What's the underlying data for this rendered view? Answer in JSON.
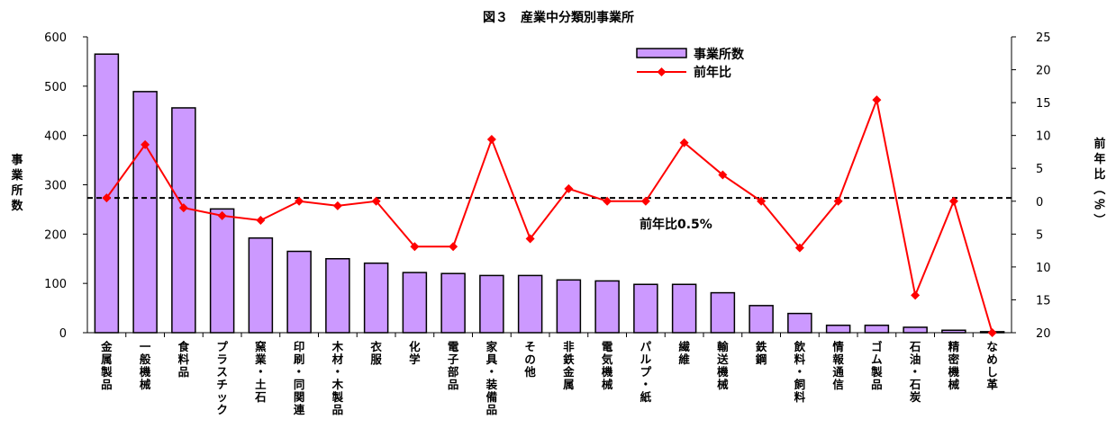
{
  "chart_data": {
    "type": "bar+line",
    "title": "図３　産業中分類別事業所",
    "categories": [
      "金属製品",
      "一般機械",
      "食料品",
      "プラスチック",
      "窯業・土石",
      "印刷・同関連",
      "木材・木製品",
      "衣服",
      "化学",
      "電子部品",
      "家具・装備品",
      "その他",
      "非鉄金属",
      "電気機械",
      "パルプ・紙",
      "繊維",
      "輸送機械",
      "鉄鋼",
      "飲料・飼料",
      "情報通信",
      "ゴム製品",
      "石油・石炭",
      "精密機械",
      "なめし革"
    ],
    "series": [
      {
        "name": "事業所数",
        "type": "bar",
        "axis": "left",
        "color": "#cc99ff",
        "values": [
          565,
          489,
          456,
          251,
          192,
          165,
          150,
          141,
          122,
          120,
          116,
          116,
          107,
          105,
          98,
          98,
          81,
          55,
          39,
          15,
          15,
          11,
          5,
          2
        ]
      },
      {
        "name": "前年比",
        "type": "line",
        "axis": "right",
        "color": "#ff0000",
        "values": [
          0.5,
          8.6,
          -1.0,
          -2.2,
          -2.9,
          0.0,
          -0.7,
          0.0,
          -6.9,
          -6.9,
          9.4,
          -5.7,
          1.9,
          0.0,
          0.0,
          8.9,
          4.0,
          0.0,
          -7.1,
          0.0,
          15.4,
          -14.3,
          0.0,
          -20.0
        ]
      }
    ],
    "left_axis": {
      "label": "事業所数",
      "ylim": [
        0,
        600
      ],
      "ticks": [
        "0",
        "100",
        "200",
        "300",
        "400",
        "500",
        "600"
      ]
    },
    "right_axis": {
      "label": "前年比（％）",
      "ylim": [
        -20,
        25
      ],
      "ticks": [
        {
          "value": 25,
          "text": "25"
        },
        {
          "value": 20,
          "text": "20"
        },
        {
          "value": 15,
          "text": "15"
        },
        {
          "value": 10,
          "text": "10"
        },
        {
          "value": 5,
          "text": "5"
        },
        {
          "value": 0,
          "text": "0"
        },
        {
          "value": -5,
          "text": "5"
        },
        {
          "value": -10,
          "text": "10"
        },
        {
          "value": -15,
          "text": "15"
        },
        {
          "value": -20,
          "text": "20"
        }
      ]
    },
    "reference_line": {
      "value": 0.5,
      "label": "前年比0.5%"
    },
    "legend": {
      "position": "top-right",
      "items": [
        "事業所数",
        "前年比"
      ]
    }
  }
}
